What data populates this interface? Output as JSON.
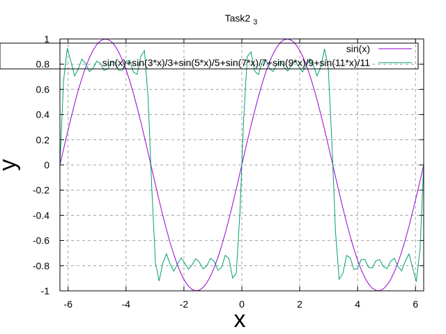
{
  "chart_data": {
    "type": "line",
    "title": "Task2",
    "title_subscript": "3",
    "xlabel": "x",
    "ylabel": "y",
    "xlim": [
      -6.283185,
      6.283185
    ],
    "ylim": [
      -1,
      1
    ],
    "xticks": [
      -6,
      -4,
      -2,
      0,
      2,
      4,
      6
    ],
    "xtick_labels": [
      "-6",
      "-4",
      "-2",
      "0",
      "2",
      "4",
      "6"
    ],
    "yticks": [
      -1,
      -0.8,
      -0.6,
      -0.4,
      -0.2,
      0,
      0.2,
      0.4,
      0.6,
      0.8,
      1
    ],
    "ytick_labels": [
      "-1",
      "-0.8",
      "-0.6",
      "-0.4",
      "-0.2",
      "0",
      "0.2",
      "0.4",
      "0.6",
      "0.8",
      "1"
    ],
    "grid": true,
    "grid_style": "dashed",
    "legend_position": "top-right",
    "sample_count": 100,
    "series": [
      {
        "name": "sin(x)",
        "expression": "sin(x)",
        "color": "#9400d3",
        "terms": [
          1
        ]
      },
      {
        "name": "sin(x)+sin(3*x)/3+sin(5*x)/5+sin(7*x)/7+sin(9*x)/9+sin(11*x)/11",
        "expression": "sin(x)+sin(3*x)/3+sin(5*x)/5+sin(7*x)/7+sin(9*x)/9+sin(11*x)/11",
        "color": "#009e73",
        "terms": [
          1,
          3,
          5,
          7,
          9,
          11
        ]
      }
    ]
  }
}
